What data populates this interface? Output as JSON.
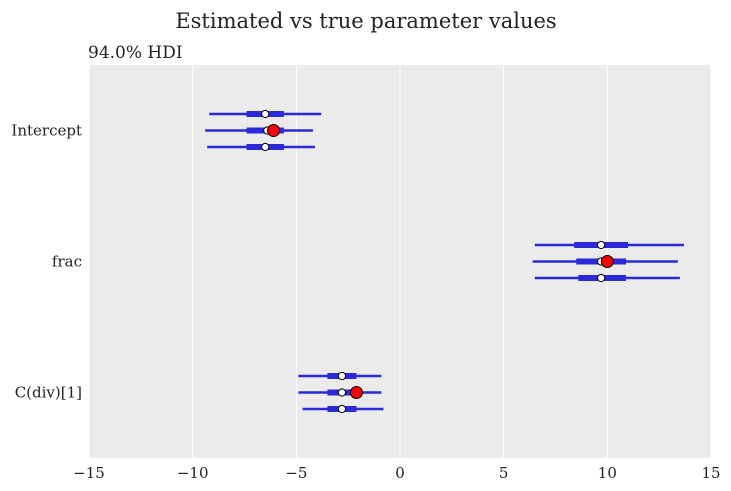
{
  "chart_data": {
    "type": "forest",
    "title": "Estimated vs true parameter values",
    "subtitle": "94.0% HDI",
    "xlim": [
      -15,
      15
    ],
    "xticks": [
      -15,
      -10,
      -5,
      0,
      5,
      10,
      15
    ],
    "xtick_labels": [
      "−15",
      "−10",
      "−5",
      "0",
      "5",
      "10",
      "15"
    ],
    "grid": "vertical",
    "colors": {
      "background": "#ebebeb",
      "grid": "#ffffff",
      "interval": "#2a2ad8",
      "estimate_fill": "#ffffff",
      "true_value_fill": "#ff0000",
      "marker_edge": "#000000"
    },
    "parameters": [
      {
        "name": "Intercept",
        "true_value": -6.1,
        "chains": [
          {
            "hdi_94": [
              -9.2,
              -3.8
            ],
            "iqr": [
              -7.4,
              -5.6
            ],
            "point": -6.5
          },
          {
            "hdi_94": [
              -9.4,
              -4.2
            ],
            "iqr": [
              -7.4,
              -5.6
            ],
            "point": -6.4
          },
          {
            "hdi_94": [
              -9.3,
              -4.1
            ],
            "iqr": [
              -7.4,
              -5.6
            ],
            "point": -6.5
          }
        ]
      },
      {
        "name": "frac",
        "true_value": 10.0,
        "chains": [
          {
            "hdi_94": [
              6.5,
              13.7
            ],
            "iqr": [
              8.4,
              11.0
            ],
            "point": 9.7
          },
          {
            "hdi_94": [
              6.4,
              13.4
            ],
            "iqr": [
              8.5,
              10.9
            ],
            "point": 9.7
          },
          {
            "hdi_94": [
              6.5,
              13.5
            ],
            "iqr": [
              8.6,
              10.9
            ],
            "point": 9.7
          }
        ]
      },
      {
        "name": "C(div)[1]",
        "true_value": -2.1,
        "chains": [
          {
            "hdi_94": [
              -4.9,
              -0.9
            ],
            "iqr": [
              -3.5,
              -2.1
            ],
            "point": -2.8
          },
          {
            "hdi_94": [
              -4.9,
              -0.9
            ],
            "iqr": [
              -3.5,
              -2.1
            ],
            "point": -2.8
          },
          {
            "hdi_94": [
              -4.7,
              -0.8
            ],
            "iqr": [
              -3.5,
              -2.1
            ],
            "point": -2.8
          }
        ]
      }
    ]
  }
}
